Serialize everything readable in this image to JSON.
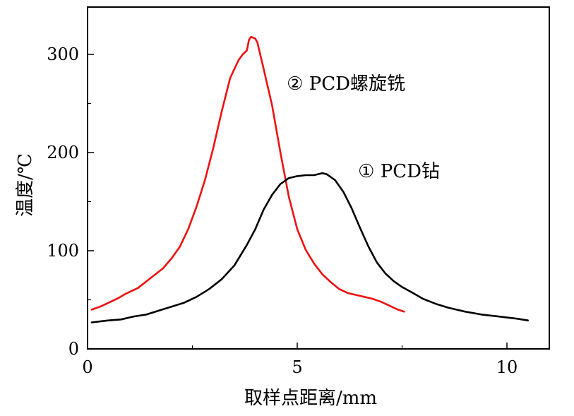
{
  "chart_data": {
    "type": "line",
    "title": "",
    "xlabel": "取样点距离/mm",
    "ylabel": "温度/℃",
    "xlim": [
      0,
      11
    ],
    "ylim": [
      0,
      340
    ],
    "x_ticks": [
      0,
      5,
      10
    ],
    "x_tick_labels": [
      "0",
      "5",
      "10"
    ],
    "x_minor_ticks": [
      2.5,
      7.5
    ],
    "y_ticks": [
      0,
      100,
      200,
      300
    ],
    "y_tick_labels": [
      "0",
      "100",
      "200",
      "300"
    ],
    "y_minor_ticks": [
      50,
      150,
      250
    ],
    "grid": false,
    "legend": "none",
    "series": [
      {
        "label": "② PCD螺旋铣",
        "label_at": {
          "x": 4.75,
          "y": 264
        },
        "color": "#ee1111",
        "points": [
          [
            0.1,
            40
          ],
          [
            0.3,
            43
          ],
          [
            0.5,
            47
          ],
          [
            0.7,
            51
          ],
          [
            0.9,
            56
          ],
          [
            1.2,
            62
          ],
          [
            1.5,
            72
          ],
          [
            1.8,
            82
          ],
          [
            2.0,
            92
          ],
          [
            2.2,
            104
          ],
          [
            2.4,
            122
          ],
          [
            2.6,
            145
          ],
          [
            2.8,
            172
          ],
          [
            3.0,
            205
          ],
          [
            3.2,
            242
          ],
          [
            3.4,
            276
          ],
          [
            3.6,
            294
          ],
          [
            3.7,
            300
          ],
          [
            3.8,
            304
          ],
          [
            3.85,
            315
          ],
          [
            3.9,
            318
          ],
          [
            4.0,
            316
          ],
          [
            4.05,
            312
          ],
          [
            4.2,
            285
          ],
          [
            4.4,
            248
          ],
          [
            4.6,
            200
          ],
          [
            4.8,
            155
          ],
          [
            5.0,
            122
          ],
          [
            5.2,
            101
          ],
          [
            5.4,
            87
          ],
          [
            5.6,
            76
          ],
          [
            5.8,
            68
          ],
          [
            6.0,
            61
          ],
          [
            6.2,
            57
          ],
          [
            6.4,
            55
          ],
          [
            6.6,
            53
          ],
          [
            6.8,
            51
          ],
          [
            7.0,
            48
          ],
          [
            7.2,
            44
          ],
          [
            7.4,
            40
          ],
          [
            7.55,
            38
          ]
        ]
      },
      {
        "label": "① PCD钻",
        "label_at": {
          "x": 6.45,
          "y": 175
        },
        "color": "#000000",
        "points": [
          [
            0.1,
            27
          ],
          [
            0.3,
            28
          ],
          [
            0.5,
            29
          ],
          [
            0.8,
            30
          ],
          [
            1.1,
            33
          ],
          [
            1.4,
            35
          ],
          [
            1.7,
            39
          ],
          [
            2.0,
            43
          ],
          [
            2.3,
            47
          ],
          [
            2.6,
            53
          ],
          [
            2.9,
            61
          ],
          [
            3.2,
            71
          ],
          [
            3.5,
            85
          ],
          [
            3.8,
            106
          ],
          [
            4.0,
            122
          ],
          [
            4.2,
            142
          ],
          [
            4.4,
            157
          ],
          [
            4.6,
            168
          ],
          [
            4.8,
            174
          ],
          [
            5.0,
            176
          ],
          [
            5.2,
            177
          ],
          [
            5.4,
            177
          ],
          [
            5.6,
            179
          ],
          [
            5.7,
            178
          ],
          [
            5.9,
            172
          ],
          [
            6.1,
            160
          ],
          [
            6.3,
            143
          ],
          [
            6.5,
            123
          ],
          [
            6.7,
            104
          ],
          [
            6.9,
            88
          ],
          [
            7.1,
            77
          ],
          [
            7.3,
            69
          ],
          [
            7.5,
            63
          ],
          [
            7.8,
            56
          ],
          [
            8.0,
            51
          ],
          [
            8.3,
            46
          ],
          [
            8.6,
            42
          ],
          [
            9.0,
            38
          ],
          [
            9.4,
            35
          ],
          [
            9.8,
            33
          ],
          [
            10.2,
            31
          ],
          [
            10.5,
            29
          ]
        ]
      }
    ]
  }
}
